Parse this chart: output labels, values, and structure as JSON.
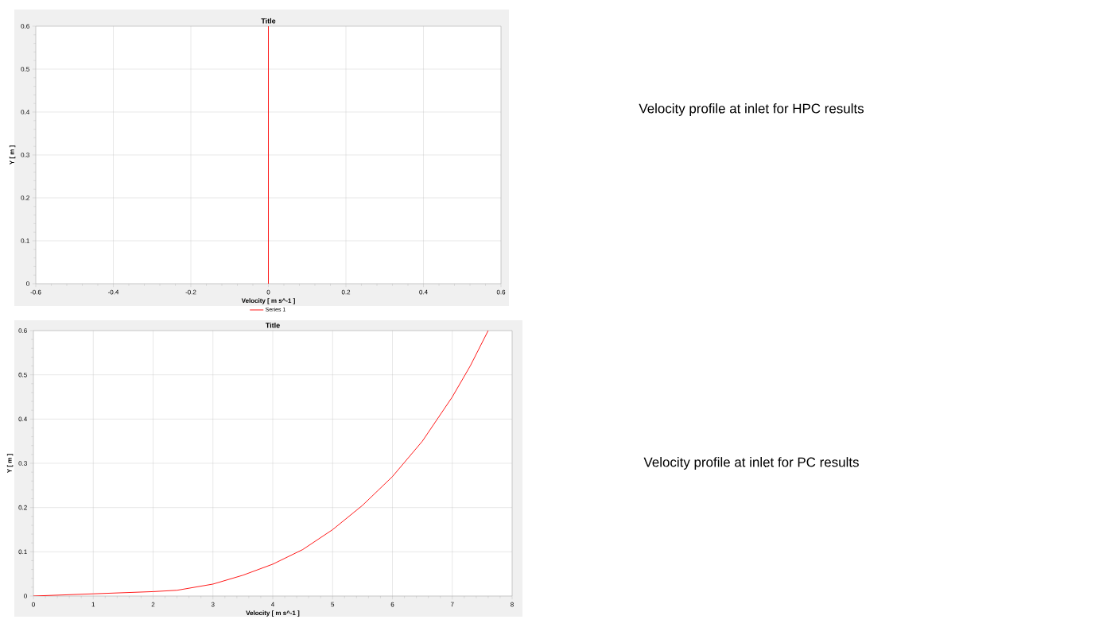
{
  "chart_data": [
    {
      "type": "line",
      "title": "Title",
      "xlabel": "Velocity [ m s^-1 ]",
      "ylabel": "Y [ m ]",
      "xlim": [
        -0.6,
        0.6
      ],
      "xticks": [
        -0.6,
        -0.4,
        -0.2,
        0,
        0.2,
        0.4,
        0.6
      ],
      "ylim": [
        0,
        0.6
      ],
      "yticks": [
        0,
        0.1,
        0.2,
        0.3,
        0.4,
        0.5,
        0.6
      ],
      "grid": true,
      "legend": "bottom",
      "series": [
        {
          "name": "Series 1",
          "color": "#ff0000",
          "x": [
            0,
            0
          ],
          "values": [
            0,
            0.6
          ]
        }
      ],
      "annotations": [
        "Velocity profile at inlet for HPC results"
      ]
    },
    {
      "type": "line",
      "title": "Title",
      "xlabel": "Velocity [ m s^-1 ]",
      "ylabel": "Y [ m ]",
      "xlim": [
        0,
        8
      ],
      "xticks": [
        0,
        1,
        2,
        3,
        4,
        5,
        6,
        7,
        8
      ],
      "ylim": [
        0,
        0.6
      ],
      "yticks": [
        0,
        0.1,
        0.2,
        0.3,
        0.4,
        0.5,
        0.6
      ],
      "grid": true,
      "series": [
        {
          "color": "#ff0000",
          "x": [
            0,
            1,
            2,
            2.4,
            3,
            3.5,
            4,
            4.5,
            5,
            5.5,
            6,
            6.5,
            7,
            7.3,
            7.6
          ],
          "values": [
            0,
            0.005,
            0.01,
            0.013,
            0.027,
            0.047,
            0.072,
            0.105,
            0.15,
            0.205,
            0.27,
            0.35,
            0.45,
            0.52,
            0.6
          ]
        }
      ],
      "annotations": [
        "Velocity profile at inlet for PC results"
      ]
    }
  ]
}
